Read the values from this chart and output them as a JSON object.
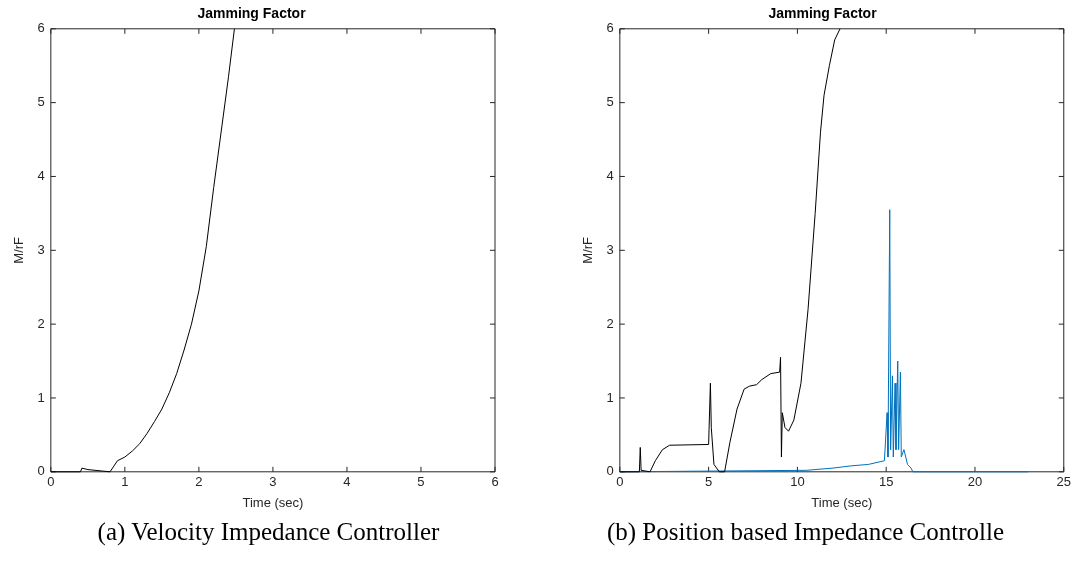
{
  "chart_data": [
    {
      "type": "line",
      "title": "Jamming Factor",
      "xlabel": "Time (sec)",
      "ylabel": "M/rF",
      "xlim": [
        0,
        6
      ],
      "xticks": [
        0,
        1,
        2,
        3,
        4,
        5,
        6
      ],
      "ylim": [
        0,
        6
      ],
      "yticks": [
        0,
        1,
        2,
        3,
        4,
        5,
        6
      ],
      "grid": false,
      "legend": false,
      "marker": "none",
      "annotations": [
        "(a) Velocity Impedance Controller"
      ],
      "series": [
        {
          "color": "#000000",
          "x": [
            0,
            0.4,
            0.42,
            0.5,
            0.7,
            0.8,
            0.9,
            1.0,
            1.1,
            1.2,
            1.3,
            1.4,
            1.5,
            1.6,
            1.7,
            1.8,
            1.9,
            2.0,
            2.1,
            2.2,
            2.3,
            2.4,
            2.48
          ],
          "values": [
            0,
            0,
            0.05,
            0.03,
            0.01,
            0,
            0.15,
            0.2,
            0.28,
            0.38,
            0.52,
            0.68,
            0.85,
            1.07,
            1.33,
            1.65,
            2.0,
            2.45,
            3.05,
            3.85,
            4.6,
            5.35,
            6
          ]
        }
      ]
    },
    {
      "type": "line",
      "title": "Jamming Factor",
      "xlabel": "Time (sec)",
      "ylabel": "M/rF",
      "xlim": [
        0,
        25
      ],
      "xticks": [
        0,
        5,
        10,
        15,
        20,
        25
      ],
      "ylim": [
        0,
        6
      ],
      "yticks": [
        0,
        1,
        2,
        3,
        4,
        5,
        6
      ],
      "grid": false,
      "legend": false,
      "marker": "none",
      "annotations": [
        "(b) Position based Impedance Controlle"
      ],
      "series": [
        {
          "color": "#000000",
          "x": [
            0,
            1.1,
            1.15,
            1.2,
            1.7,
            2.0,
            2.4,
            2.8,
            5.0,
            5.1,
            5.15,
            5.3,
            5.6,
            5.9,
            6.2,
            6.6,
            7.0,
            7.3,
            7.7,
            8.0,
            8.5,
            9.0,
            9.05,
            9.1,
            9.15,
            9.3,
            9.5,
            9.8,
            10.2,
            10.6,
            11.0,
            11.3,
            11.5,
            11.8,
            12.1,
            12.4
          ],
          "values": [
            0,
            0,
            0.33,
            0.02,
            0,
            0.15,
            0.3,
            0.36,
            0.37,
            1.2,
            0.6,
            0.1,
            0,
            0,
            0.4,
            0.85,
            1.12,
            1.16,
            1.18,
            1.25,
            1.33,
            1.35,
            1.55,
            0.2,
            0.8,
            0.6,
            0.55,
            0.7,
            1.2,
            2.2,
            3.5,
            4.6,
            5.1,
            5.5,
            5.85,
            6
          ]
        },
        {
          "color": "#0072bd",
          "x": [
            0,
            10.5,
            12,
            13,
            14,
            14.9,
            15.05,
            15.1,
            15.2,
            15.25,
            15.35,
            15.4,
            15.5,
            15.55,
            15.65,
            15.7,
            15.8,
            15.85,
            16.0,
            16.2,
            16.4,
            16.5,
            23
          ],
          "values": [
            0,
            0.02,
            0.05,
            0.08,
            0.1,
            0.15,
            0.8,
            0.2,
            3.55,
            0.3,
            1.3,
            0.2,
            1.2,
            0.3,
            1.5,
            0.3,
            1.35,
            0.2,
            0.3,
            0.1,
            0.05,
            0,
            0
          ]
        }
      ]
    }
  ]
}
